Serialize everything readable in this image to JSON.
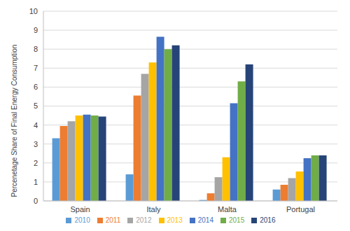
{
  "chart_data": {
    "type": "bar",
    "y_label": "Percenetage Share of Final Energy Consumption",
    "categories": [
      "Spain",
      "Italy",
      "Malta",
      "Portugal"
    ],
    "series": [
      {
        "name": "2010",
        "color": "#5b9bd5",
        "values": [
          3.3,
          1.4,
          0.05,
          0.6
        ]
      },
      {
        "name": "2011",
        "color": "#ed7d31",
        "values": [
          3.95,
          5.55,
          0.4,
          0.85
        ]
      },
      {
        "name": "2012",
        "color": "#a5a5a5",
        "values": [
          4.2,
          6.7,
          1.25,
          1.2
        ]
      },
      {
        "name": "2013",
        "color": "#ffc000",
        "values": [
          4.5,
          7.3,
          2.3,
          1.55
        ]
      },
      {
        "name": "2014",
        "color": "#4472c4",
        "values": [
          4.55,
          8.65,
          5.15,
          2.25
        ]
      },
      {
        "name": "2015",
        "color": "#70ad47",
        "values": [
          4.5,
          8.0,
          6.3,
          2.4
        ]
      },
      {
        "name": "2016",
        "color": "#264478",
        "values": [
          4.45,
          8.2,
          7.2,
          2.4
        ]
      }
    ],
    "ylim": [
      0,
      10
    ],
    "yticks": [
      0,
      1,
      2,
      3,
      4,
      5,
      6,
      7,
      8,
      9,
      10
    ],
    "grid": true,
    "legend": "bottom"
  }
}
